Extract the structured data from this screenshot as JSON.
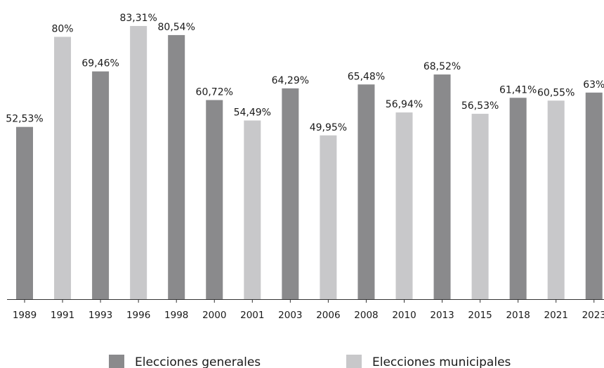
{
  "chart_data": {
    "type": "bar",
    "categories": [
      "1989",
      "1991",
      "1993",
      "1996",
      "1998",
      "2000",
      "2001",
      "2003",
      "2006",
      "2008",
      "2010",
      "2013",
      "2015",
      "2018",
      "2021",
      "2023"
    ],
    "values": [
      52.53,
      80,
      69.46,
      83.31,
      80.54,
      60.72,
      54.49,
      64.29,
      49.95,
      65.48,
      56.94,
      68.52,
      56.53,
      61.41,
      60.55,
      63
    ],
    "value_labels": [
      "52,53%",
      "80%",
      "69,46%",
      "83,31%",
      "80,54%",
      "60,72%",
      "54,49%",
      "64,29%",
      "49,95%",
      "65,48%",
      "56,94%",
      "68,52%",
      "56,53%",
      "61,41%",
      "60,55%",
      "63%"
    ],
    "series_of_bar": [
      "generales",
      "municipales",
      "generales",
      "municipales",
      "generales",
      "generales",
      "municipales",
      "generales",
      "municipales",
      "generales",
      "municipales",
      "generales",
      "municipales",
      "generales",
      "municipales",
      "generales"
    ],
    "series": [
      {
        "key": "generales",
        "name": "Elecciones generales",
        "color": "#8a8a8c"
      },
      {
        "key": "municipales",
        "name": "Elecciones municipales",
        "color": "#c8c8ca"
      }
    ],
    "title": "",
    "xlabel": "",
    "ylabel": "",
    "ylim": [
      0,
      90
    ],
    "grid": false,
    "legend_position": "bottom"
  }
}
